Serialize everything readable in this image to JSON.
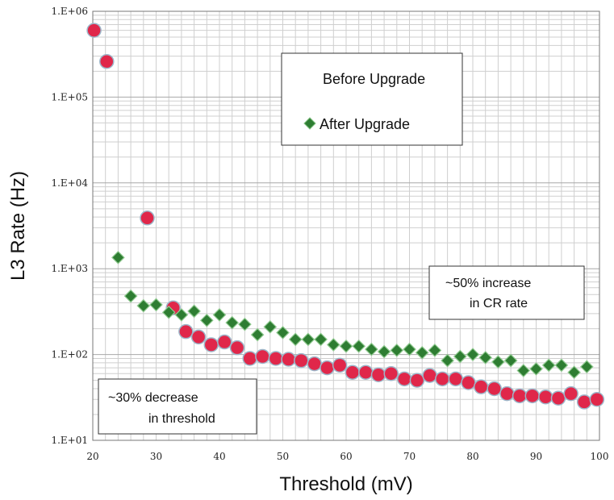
{
  "chart_data": {
    "type": "scatter",
    "title": "",
    "xlabel": "Threshold (mV)",
    "ylabel": "L3 Rate (Hz)",
    "xlim": [
      20,
      100
    ],
    "ylim": [
      10,
      1000000
    ],
    "yscale": "log",
    "grid": true,
    "x_ticks": [
      "20",
      "30",
      "40",
      "50",
      "60",
      "70",
      "80",
      "90",
      "100"
    ],
    "y_ticks": [
      "1.E+01",
      "1.E+02",
      "1.E+03",
      "1.E+04",
      "1.E+05",
      "1.E+06"
    ],
    "legend": {
      "placement": "top-center",
      "entries": [
        "Before Upgrade",
        "After Upgrade"
      ]
    },
    "series": [
      {
        "name": "Before Upgrade",
        "marker": "circle",
        "color": "#e0274a",
        "x": [
          20.2,
          22.2,
          28.6,
          32.7,
          34.7,
          36.7,
          38.7,
          40.8,
          42.8,
          44.8,
          46.8,
          48.9,
          50.9,
          52.9,
          55.0,
          57.0,
          59.0,
          61.0,
          63.1,
          65.1,
          67.1,
          69.2,
          71.2,
          73.2,
          75.2,
          77.3,
          79.3,
          81.3,
          83.4,
          85.4,
          87.4,
          89.4,
          91.5,
          93.5,
          95.5,
          97.6,
          99.6
        ],
        "y": [
          600000,
          260000,
          3900,
          350,
          185,
          160,
          130,
          140,
          120,
          90,
          95,
          90,
          88,
          85,
          78,
          70,
          75,
          62,
          62,
          58,
          60,
          52,
          50,
          57,
          52,
          52,
          47,
          42,
          40,
          35,
          33,
          33,
          32,
          31,
          35,
          28,
          30
        ]
      },
      {
        "name": "After Upgrade",
        "marker": "diamond",
        "color": "#2e7d32",
        "x": [
          24.0,
          26.0,
          28.0,
          30.0,
          32.0,
          34.0,
          36.0,
          38.0,
          40.0,
          42.0,
          44.0,
          46.0,
          48.0,
          50.0,
          52.0,
          54.0,
          56.0,
          58.0,
          60.0,
          62.0,
          64.0,
          66.0,
          68.0,
          70.0,
          72.0,
          74.0,
          76.0,
          78.0,
          80.0,
          82.0,
          84.0,
          86.0,
          88.0,
          90.0,
          92.0,
          94.0,
          96.0,
          98.0
        ],
        "y": [
          1350,
          480,
          370,
          380,
          310,
          290,
          320,
          250,
          290,
          235,
          225,
          170,
          210,
          180,
          150,
          150,
          150,
          130,
          125,
          125,
          115,
          108,
          112,
          115,
          105,
          112,
          85,
          95,
          100,
          92,
          82,
          85,
          65,
          68,
          75,
          75,
          62,
          72
        ]
      }
    ],
    "annotations": [
      {
        "lines": [
          "~50%  increase",
          "in CR rate"
        ],
        "placement": "right-middle"
      },
      {
        "lines": [
          "~30%  decrease",
          "in threshold"
        ],
        "placement": "bottom-left"
      }
    ]
  }
}
